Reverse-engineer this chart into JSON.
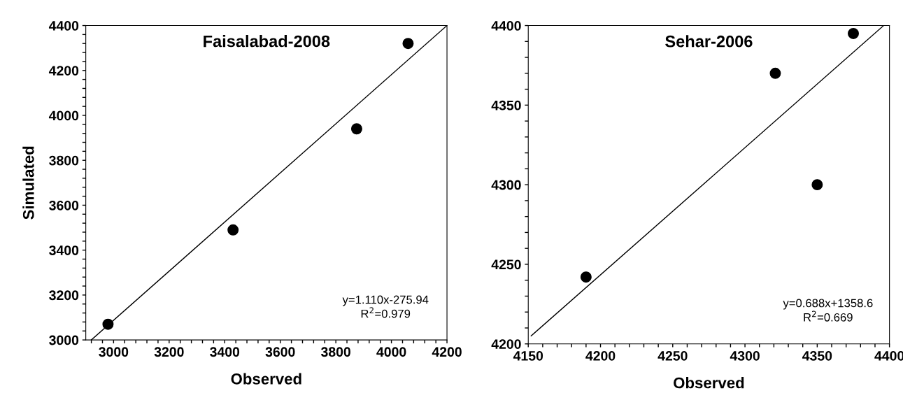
{
  "chart_data": [
    {
      "type": "scatter",
      "title": "Faisalabad-2008",
      "xlabel": "Observed",
      "ylabel": "Simulated",
      "marker": "circle",
      "grid": false,
      "legend": false,
      "annotations": [
        "y=1.110x-275.94",
        "R$^{2}$=0.979"
      ],
      "xlim": [
        2900,
        4200
      ],
      "ylim": [
        3000,
        4400
      ],
      "xticks": [
        {
          "value": 2920,
          "label": null
        },
        {
          "value": 2960,
          "label": null
        },
        3000,
        {
          "value": 3040,
          "label": null
        },
        {
          "value": 3080,
          "label": null
        },
        {
          "value": 3120,
          "label": null
        },
        {
          "value": 3160,
          "label": null
        },
        3200,
        {
          "value": 3240,
          "label": null
        },
        {
          "value": 3280,
          "label": null
        },
        {
          "value": 3320,
          "label": null
        },
        {
          "value": 3360,
          "label": null
        },
        3400,
        {
          "value": 3440,
          "label": null
        },
        {
          "value": 3480,
          "label": null
        },
        {
          "value": 3520,
          "label": null
        },
        {
          "value": 3560,
          "label": null
        },
        3600,
        {
          "value": 3640,
          "label": null
        },
        {
          "value": 3680,
          "label": null
        },
        {
          "value": 3720,
          "label": null
        },
        {
          "value": 3760,
          "label": null
        },
        3800,
        {
          "value": 3840,
          "label": null
        },
        {
          "value": 3880,
          "label": null
        },
        {
          "value": 3920,
          "label": null
        },
        {
          "value": 3960,
          "label": null
        },
        4000,
        {
          "value": 4040,
          "label": null
        },
        {
          "value": 4080,
          "label": null
        },
        {
          "value": 4120,
          "label": null
        },
        {
          "value": 4160,
          "label": null
        },
        4200
      ],
      "yticks": [
        3000,
        {
          "value": 3040,
          "label": null
        },
        {
          "value": 3080,
          "label": null
        },
        {
          "value": 3120,
          "label": null
        },
        {
          "value": 3160,
          "label": null
        },
        3200,
        {
          "value": 3240,
          "label": null
        },
        {
          "value": 3280,
          "label": null
        },
        {
          "value": 3320,
          "label": null
        },
        {
          "value": 3360,
          "label": null
        },
        3400,
        {
          "value": 3440,
          "label": null
        },
        {
          "value": 3480,
          "label": null
        },
        {
          "value": 3520,
          "label": null
        },
        {
          "value": 3560,
          "label": null
        },
        3600,
        {
          "value": 3640,
          "label": null
        },
        {
          "value": 3680,
          "label": null
        },
        {
          "value": 3720,
          "label": null
        },
        {
          "value": 3760,
          "label": null
        },
        3800,
        {
          "value": 3840,
          "label": null
        },
        {
          "value": 3880,
          "label": null
        },
        {
          "value": 3920,
          "label": null
        },
        {
          "value": 3960,
          "label": null
        },
        4000,
        {
          "value": 4040,
          "label": null
        },
        {
          "value": 4080,
          "label": null
        },
        {
          "value": 4120,
          "label": null
        },
        {
          "value": 4160,
          "label": null
        },
        4200,
        {
          "value": 4240,
          "label": null
        },
        {
          "value": 4280,
          "label": null
        },
        {
          "value": 4320,
          "label": null
        },
        {
          "value": 4360,
          "label": null
        },
        4400
      ],
      "series": [
        {
          "color": "#000000",
          "x": [
            2980,
            3430,
            3875,
            4060
          ],
          "values": [
            3070,
            3490,
            3940,
            4320
          ]
        },
        {
          "type": "line",
          "color": "#000000",
          "marker": "none",
          "x": [
            2920,
            4200
          ],
          "values": [
            3000,
            4400
          ]
        }
      ]
    },
    {
      "type": "scatter",
      "title": "Sehar-2006",
      "xlabel": "Observed",
      "marker": "circle",
      "grid": false,
      "legend": false,
      "annotations": [
        "y=0.688x+1358.6",
        "R$^{2}$=0.669"
      ],
      "xlim": [
        4150,
        4400
      ],
      "ylim": [
        4200,
        4400
      ],
      "xticks": [
        4150,
        {
          "value": 4160,
          "label": null
        },
        {
          "value": 4170,
          "label": null
        },
        {
          "value": 4180,
          "label": null
        },
        {
          "value": 4190,
          "label": null
        },
        4200,
        {
          "value": 4210,
          "label": null
        },
        {
          "value": 4220,
          "label": null
        },
        {
          "value": 4230,
          "label": null
        },
        {
          "value": 4240,
          "label": null
        },
        4250,
        {
          "value": 4260,
          "label": null
        },
        {
          "value": 4270,
          "label": null
        },
        {
          "value": 4280,
          "label": null
        },
        {
          "value": 4290,
          "label": null
        },
        4300,
        {
          "value": 4310,
          "label": null
        },
        {
          "value": 4320,
          "label": null
        },
        {
          "value": 4330,
          "label": null
        },
        {
          "value": 4340,
          "label": null
        },
        4350,
        {
          "value": 4360,
          "label": null
        },
        {
          "value": 4370,
          "label": null
        },
        {
          "value": 4380,
          "label": null
        },
        {
          "value": 4390,
          "label": null
        },
        4400
      ],
      "yticks": [
        4200,
        {
          "value": 4210,
          "label": null
        },
        {
          "value": 4220,
          "label": null
        },
        {
          "value": 4230,
          "label": null
        },
        {
          "value": 4240,
          "label": null
        },
        4250,
        {
          "value": 4260,
          "label": null
        },
        {
          "value": 4270,
          "label": null
        },
        {
          "value": 4280,
          "label": null
        },
        {
          "value": 4290,
          "label": null
        },
        4300,
        {
          "value": 4310,
          "label": null
        },
        {
          "value": 4320,
          "label": null
        },
        {
          "value": 4330,
          "label": null
        },
        {
          "value": 4340,
          "label": null
        },
        4350,
        {
          "value": 4360,
          "label": null
        },
        {
          "value": 4370,
          "label": null
        },
        {
          "value": 4380,
          "label": null
        },
        {
          "value": 4390,
          "label": null
        },
        4400
      ],
      "series": [
        {
          "color": "#000000",
          "x": [
            4190,
            4321,
            4350,
            4375
          ],
          "values": [
            4242,
            4370,
            4300,
            4395
          ]
        },
        {
          "type": "line",
          "color": "#000000",
          "marker": "none",
          "x": [
            4152,
            4396
          ],
          "values": [
            4205,
            4400
          ]
        }
      ]
    }
  ]
}
